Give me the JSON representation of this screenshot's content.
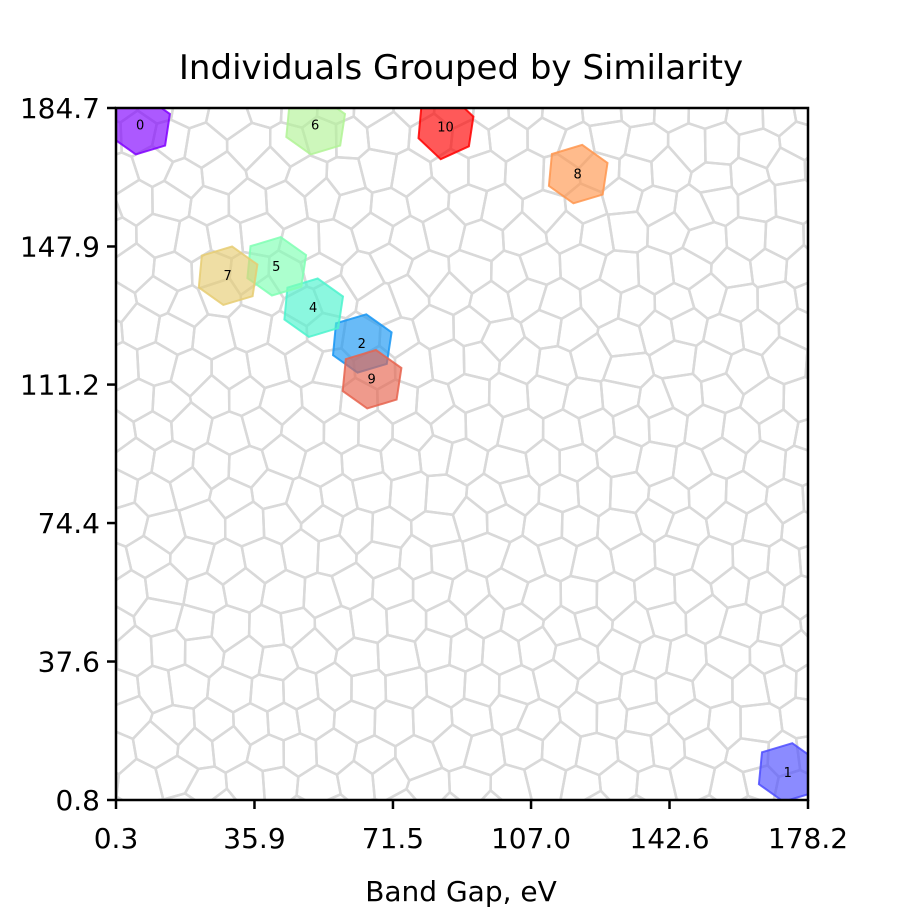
{
  "chart_data": {
    "type": "scatter",
    "title": "Individuals Grouped by Similarity",
    "xlabel": "Band Gap, eV",
    "ylabel": "",
    "xlim": [
      0.3,
      178.2
    ],
    "ylim": [
      0.8,
      184.7
    ],
    "xticks": [
      "0.3",
      "35.9",
      "71.5",
      "107.0",
      "142.6",
      "178.2"
    ],
    "yticks": [
      "0.8",
      "37.6",
      "74.4",
      "111.2",
      "147.9",
      "184.7"
    ],
    "grid": "voronoi cells, light gray",
    "points": [
      {
        "label": "0",
        "x": 6.5,
        "y": 180.0,
        "color": "#8000ff"
      },
      {
        "label": "1",
        "x": 173.0,
        "y": 8.0,
        "color": "#4d4dff"
      },
      {
        "label": "2",
        "x": 63.5,
        "y": 122.0,
        "color": "#1996f3"
      },
      {
        "label": "4",
        "x": 51.0,
        "y": 131.5,
        "color": "#4df3ce"
      },
      {
        "label": "5",
        "x": 41.5,
        "y": 142.5,
        "color": "#80ffb4"
      },
      {
        "label": "6",
        "x": 51.5,
        "y": 180.0,
        "color": "#b2f396"
      },
      {
        "label": "7",
        "x": 29.0,
        "y": 140.0,
        "color": "#e6cd73"
      },
      {
        "label": "8",
        "x": 119.0,
        "y": 167.0,
        "color": "#ff964f"
      },
      {
        "label": "9",
        "x": 66.0,
        "y": 112.5,
        "color": "#e6644f"
      },
      {
        "label": "10",
        "x": 85.0,
        "y": 179.5,
        "color": "#ff0000"
      }
    ]
  }
}
